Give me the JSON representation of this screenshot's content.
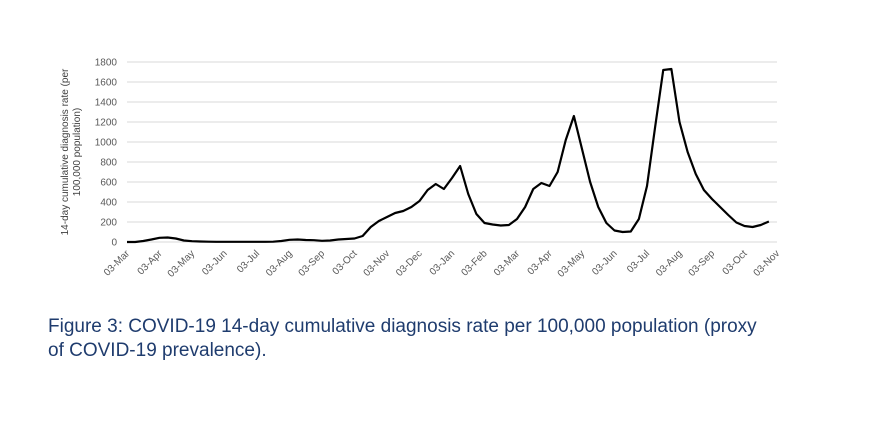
{
  "chart_data": {
    "type": "line",
    "y_label": [
      "14-day cumulative diagnosis rate (per",
      "100,000 population)"
    ],
    "caption": [
      "Figure 3: COVID-19 14-day cumulative diagnosis rate per 100,000 population (proxy",
      "of COVID-19 prevalence)."
    ],
    "categories": [
      "03-Mar",
      null,
      null,
      null,
      "03-Apr",
      null,
      null,
      null,
      "03-May",
      null,
      null,
      null,
      "03-Jun",
      null,
      null,
      null,
      "03-Jul",
      null,
      null,
      null,
      "03-Aug",
      null,
      null,
      null,
      "03-Sep",
      null,
      null,
      null,
      "03-Oct",
      null,
      null,
      null,
      "03-Nov",
      null,
      null,
      null,
      "03-Dec",
      null,
      null,
      null,
      "03-Jan",
      null,
      null,
      null,
      "03-Feb",
      null,
      null,
      null,
      "03-Mar",
      null,
      null,
      null,
      "03-Apr",
      null,
      null,
      null,
      "03-May",
      null,
      null,
      null,
      "03-Jun",
      null,
      null,
      null,
      "03-Jul",
      null,
      null,
      null,
      "03-Aug",
      null,
      null,
      null,
      "03-Sep",
      null,
      null,
      null,
      "03-Oct",
      null,
      null,
      null,
      "03-Nov"
    ],
    "series": [
      {
        "color": "#000000",
        "values": [
          0,
          0,
          10,
          25,
          42,
          45,
          35,
          15,
          8,
          5,
          3,
          2,
          2,
          2,
          2,
          2,
          2,
          2,
          3,
          10,
          22,
          25,
          20,
          18,
          12,
          15,
          25,
          30,
          35,
          60,
          150,
          210,
          250,
          290,
          310,
          350,
          410,
          520,
          580,
          530,
          640,
          760,
          480,
          280,
          190,
          175,
          165,
          170,
          230,
          350,
          530,
          590,
          560,
          700,
          1020,
          1260,
          930,
          600,
          350,
          190,
          115,
          100,
          105,
          230,
          560,
          1150,
          1720,
          1730,
          1200,
          900,
          680,
          520,
          430,
          350,
          270,
          195,
          160,
          150,
          170,
          205,
          null
        ]
      }
    ],
    "ylim": [
      0,
      1800
    ],
    "yticks": [
      0,
      200,
      400,
      600,
      800,
      1000,
      1200,
      1400,
      1600,
      1800
    ],
    "grid": true
  }
}
